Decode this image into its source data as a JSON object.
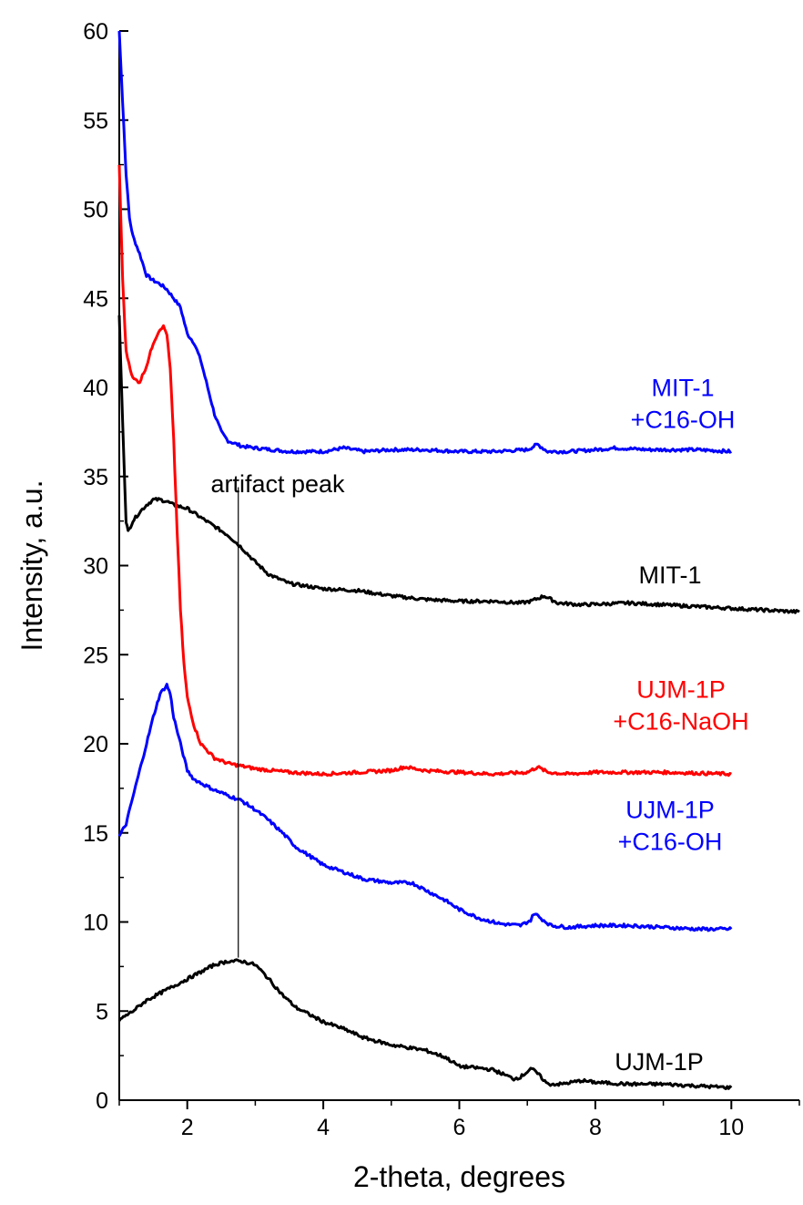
{
  "chart_data": {
    "type": "line",
    "xlabel": "2-theta, degrees",
    "ylabel": "Intensity, a.u.",
    "xlim": [
      1,
      11
    ],
    "ylim": [
      0,
      60
    ],
    "x_ticks": [
      2,
      4,
      6,
      8,
      10
    ],
    "y_ticks": [
      0,
      5,
      10,
      15,
      20,
      25,
      30,
      35,
      40,
      45,
      50,
      55,
      60
    ],
    "grid": false,
    "legend": "none",
    "series": [
      {
        "label_lines": [
          "MIT-1",
          "+C16-OH"
        ],
        "color": "#0000ff",
        "points": [
          [
            1.0,
            60
          ],
          [
            1.05,
            56
          ],
          [
            1.1,
            52
          ],
          [
            1.15,
            49.5
          ],
          [
            1.2,
            48.5
          ],
          [
            1.3,
            47.5
          ],
          [
            1.4,
            46.3
          ],
          [
            1.5,
            46
          ],
          [
            1.6,
            45.8
          ],
          [
            1.7,
            45.5
          ],
          [
            1.8,
            45
          ],
          [
            1.9,
            44.5
          ],
          [
            2.0,
            43
          ],
          [
            2.1,
            42.5
          ],
          [
            2.2,
            41.5
          ],
          [
            2.3,
            40
          ],
          [
            2.4,
            38.5
          ],
          [
            2.5,
            37.5
          ],
          [
            2.6,
            37
          ],
          [
            2.8,
            36.7
          ],
          [
            3.0,
            36.6
          ],
          [
            3.5,
            36.4
          ],
          [
            4.0,
            36.4
          ],
          [
            4.3,
            36.6
          ],
          [
            4.6,
            36.4
          ],
          [
            5.0,
            36.5
          ],
          [
            5.5,
            36.5
          ],
          [
            6.0,
            36.4
          ],
          [
            6.5,
            36.4
          ],
          [
            7.0,
            36.5
          ],
          [
            7.15,
            36.8
          ],
          [
            7.3,
            36.4
          ],
          [
            7.6,
            36.4
          ],
          [
            8.0,
            36.5
          ],
          [
            8.3,
            36.6
          ],
          [
            8.8,
            36.5
          ],
          [
            9.5,
            36.5
          ],
          [
            10.0,
            36.4
          ]
        ]
      },
      {
        "label_lines": [
          "MIT-1"
        ],
        "color": "#000000",
        "points": [
          [
            1.0,
            44
          ],
          [
            1.05,
            38
          ],
          [
            1.1,
            32.5
          ],
          [
            1.13,
            31.9
          ],
          [
            1.2,
            32.5
          ],
          [
            1.3,
            33
          ],
          [
            1.4,
            33.4
          ],
          [
            1.5,
            33.7
          ],
          [
            1.6,
            33.7
          ],
          [
            1.7,
            33.6
          ],
          [
            1.8,
            33.4
          ],
          [
            2.0,
            33.2
          ],
          [
            2.2,
            32.7
          ],
          [
            2.4,
            32.2
          ],
          [
            2.6,
            31.7
          ],
          [
            2.8,
            31
          ],
          [
            3.0,
            30.2
          ],
          [
            3.2,
            29.5
          ],
          [
            3.5,
            29
          ],
          [
            4.0,
            28.7
          ],
          [
            4.5,
            28.6
          ],
          [
            5.0,
            28.3
          ],
          [
            5.5,
            28.1
          ],
          [
            6.0,
            28.0
          ],
          [
            6.5,
            28.0
          ],
          [
            6.9,
            27.9
          ],
          [
            7.05,
            28
          ],
          [
            7.25,
            28.3
          ],
          [
            7.45,
            27.9
          ],
          [
            7.8,
            27.8
          ],
          [
            8.5,
            27.9
          ],
          [
            9.0,
            27.8
          ],
          [
            10.0,
            27.6
          ],
          [
            11.0,
            27.4
          ]
        ]
      },
      {
        "label_lines": [
          "UJM-1P",
          "+C16-NaOH"
        ],
        "color": "#ff0000",
        "points": [
          [
            1.0,
            52.5
          ],
          [
            1.05,
            46
          ],
          [
            1.1,
            42
          ],
          [
            1.2,
            40.5
          ],
          [
            1.3,
            40.3
          ],
          [
            1.4,
            41.2
          ],
          [
            1.5,
            42.5
          ],
          [
            1.6,
            43.3
          ],
          [
            1.65,
            43.4
          ],
          [
            1.7,
            43
          ],
          [
            1.75,
            41
          ],
          [
            1.8,
            37
          ],
          [
            1.85,
            32
          ],
          [
            1.9,
            27.5
          ],
          [
            1.95,
            24.5
          ],
          [
            2.0,
            22.6
          ],
          [
            2.1,
            21
          ],
          [
            2.2,
            20
          ],
          [
            2.4,
            19.2
          ],
          [
            2.6,
            18.9
          ],
          [
            3.0,
            18.6
          ],
          [
            3.5,
            18.4
          ],
          [
            4.0,
            18.3
          ],
          [
            4.5,
            18.4
          ],
          [
            5.0,
            18.5
          ],
          [
            5.2,
            18.7
          ],
          [
            5.5,
            18.5
          ],
          [
            6.0,
            18.4
          ],
          [
            6.5,
            18.3
          ],
          [
            7.0,
            18.4
          ],
          [
            7.15,
            18.7
          ],
          [
            7.3,
            18.4
          ],
          [
            7.6,
            18.3
          ],
          [
            8.0,
            18.4
          ],
          [
            9.0,
            18.4
          ],
          [
            10.0,
            18.3
          ]
        ]
      },
      {
        "label_lines": [
          "UJM-1P",
          "+C16-OH"
        ],
        "color": "#0000ff",
        "points": [
          [
            1.0,
            14.8
          ],
          [
            1.1,
            15.5
          ],
          [
            1.2,
            17
          ],
          [
            1.3,
            18.5
          ],
          [
            1.4,
            20
          ],
          [
            1.5,
            21.5
          ],
          [
            1.6,
            22.8
          ],
          [
            1.7,
            23.3
          ],
          [
            1.75,
            22.8
          ],
          [
            1.8,
            21.5
          ],
          [
            1.9,
            20
          ],
          [
            2.0,
            18.5
          ],
          [
            2.1,
            18
          ],
          [
            2.2,
            17.8
          ],
          [
            2.4,
            17.4
          ],
          [
            2.6,
            17.1
          ],
          [
            2.8,
            16.8
          ],
          [
            3.0,
            16.3
          ],
          [
            3.2,
            15.7
          ],
          [
            3.4,
            15
          ],
          [
            3.6,
            14.2
          ],
          [
            3.8,
            13.7
          ],
          [
            4.0,
            13.2
          ],
          [
            4.3,
            12.8
          ],
          [
            4.6,
            12.4
          ],
          [
            5.0,
            12.2
          ],
          [
            5.3,
            12.2
          ],
          [
            5.5,
            11.8
          ],
          [
            5.8,
            11.2
          ],
          [
            6.0,
            10.7
          ],
          [
            6.3,
            10.2
          ],
          [
            6.6,
            9.9
          ],
          [
            6.9,
            9.8
          ],
          [
            7.05,
            10.1
          ],
          [
            7.1,
            10.5
          ],
          [
            7.2,
            10.2
          ],
          [
            7.35,
            9.8
          ],
          [
            7.6,
            9.7
          ],
          [
            8.0,
            9.8
          ],
          [
            8.5,
            9.8
          ],
          [
            9.0,
            9.7
          ],
          [
            9.5,
            9.6
          ],
          [
            10.0,
            9.6
          ]
        ]
      },
      {
        "label_lines": [
          "UJM-1P"
        ],
        "color": "#000000",
        "points": [
          [
            1.0,
            4.5
          ],
          [
            1.2,
            5
          ],
          [
            1.4,
            5.6
          ],
          [
            1.6,
            6
          ],
          [
            1.8,
            6.4
          ],
          [
            2.0,
            6.8
          ],
          [
            2.2,
            7.2
          ],
          [
            2.4,
            7.6
          ],
          [
            2.6,
            7.8
          ],
          [
            2.8,
            7.8
          ],
          [
            3.0,
            7.6
          ],
          [
            3.2,
            6.8
          ],
          [
            3.4,
            5.9
          ],
          [
            3.6,
            5.2
          ],
          [
            3.8,
            4.8
          ],
          [
            4.0,
            4.4
          ],
          [
            4.3,
            4
          ],
          [
            4.6,
            3.5
          ],
          [
            5.0,
            3.1
          ],
          [
            5.5,
            2.8
          ],
          [
            5.8,
            2.4
          ],
          [
            6.0,
            1.9
          ],
          [
            6.3,
            1.8
          ],
          [
            6.5,
            1.7
          ],
          [
            6.8,
            1.2
          ],
          [
            6.9,
            1.3
          ],
          [
            7.0,
            1.6
          ],
          [
            7.05,
            1.8
          ],
          [
            7.15,
            1.5
          ],
          [
            7.3,
            0.9
          ],
          [
            7.5,
            0.9
          ],
          [
            7.8,
            1.1
          ],
          [
            8.0,
            1.0
          ],
          [
            8.5,
            0.9
          ],
          [
            9.0,
            0.9
          ],
          [
            9.5,
            0.8
          ],
          [
            10.0,
            0.7
          ]
        ]
      }
    ],
    "annotations": [
      {
        "text": "artifact peak",
        "x": 2.75,
        "y_from": 8.0,
        "y_to": 34.4
      }
    ]
  }
}
